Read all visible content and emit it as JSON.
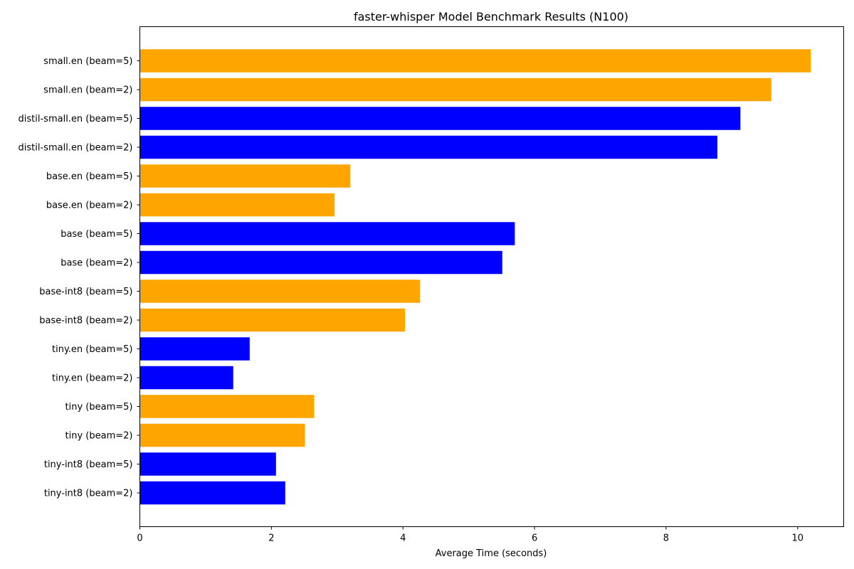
{
  "chart_data": {
    "type": "bar",
    "orientation": "horizontal",
    "title": "faster-whisper Model Benchmark Results (N100)",
    "xlabel": "Average Time (seconds)",
    "ylabel": "",
    "xlim": [
      0,
      10.7
    ],
    "xticks": [
      0,
      2,
      4,
      6,
      8,
      10
    ],
    "grid": false,
    "colors": {
      "orange": "#FFA500",
      "blue": "#0000FF"
    },
    "bars": [
      {
        "label": "small.en (beam=5)",
        "value": 10.2,
        "color": "#FFA500"
      },
      {
        "label": "small.en (beam=2)",
        "value": 9.6,
        "color": "#FFA500"
      },
      {
        "label": "distil-small.en (beam=5)",
        "value": 9.13,
        "color": "#0000FF"
      },
      {
        "label": "distil-small.en (beam=2)",
        "value": 8.78,
        "color": "#0000FF"
      },
      {
        "label": "base.en (beam=5)",
        "value": 3.2,
        "color": "#FFA500"
      },
      {
        "label": "base.en (beam=2)",
        "value": 2.96,
        "color": "#FFA500"
      },
      {
        "label": "base (beam=5)",
        "value": 5.7,
        "color": "#0000FF"
      },
      {
        "label": "base (beam=2)",
        "value": 5.51,
        "color": "#0000FF"
      },
      {
        "label": "base-int8 (beam=5)",
        "value": 4.26,
        "color": "#FFA500"
      },
      {
        "label": "base-int8 (beam=2)",
        "value": 4.03,
        "color": "#FFA500"
      },
      {
        "label": "tiny.en (beam=5)",
        "value": 1.67,
        "color": "#0000FF"
      },
      {
        "label": "tiny.en (beam=2)",
        "value": 1.42,
        "color": "#0000FF"
      },
      {
        "label": "tiny (beam=5)",
        "value": 2.65,
        "color": "#FFA500"
      },
      {
        "label": "tiny (beam=2)",
        "value": 2.51,
        "color": "#FFA500"
      },
      {
        "label": "tiny-int8 (beam=5)",
        "value": 2.07,
        "color": "#0000FF"
      },
      {
        "label": "tiny-int8 (beam=2)",
        "value": 2.21,
        "color": "#0000FF"
      }
    ]
  }
}
